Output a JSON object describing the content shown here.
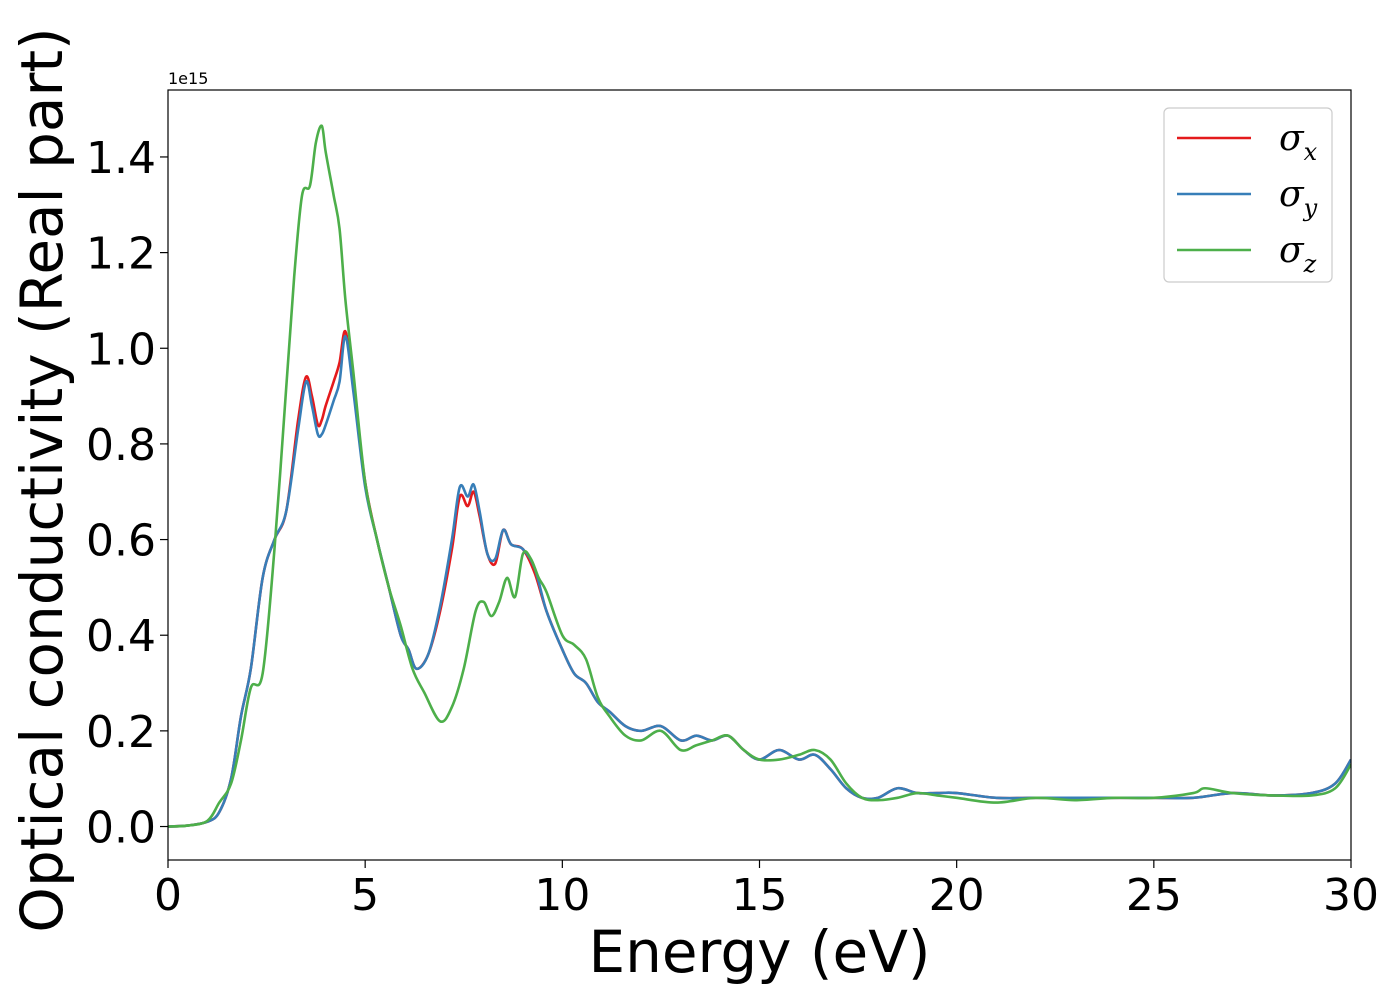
{
  "chart_data": {
    "type": "line",
    "xlabel": "Energy (eV)",
    "ylabel": "Optical conductivity (Real part)",
    "y_offset_text": "1e15",
    "xlim": [
      0,
      30
    ],
    "ylim": [
      -0.07,
      1.54
    ],
    "x_ticks": [
      0,
      5,
      10,
      15,
      20,
      25,
      30
    ],
    "x_tick_labels": [
      "0",
      "5",
      "10",
      "15",
      "20",
      "25",
      "30"
    ],
    "y_ticks": [
      0.0,
      0.2,
      0.4,
      0.6,
      0.8,
      1.0,
      1.2,
      1.4
    ],
    "y_tick_labels": [
      "0.0",
      "0.2",
      "0.4",
      "0.6",
      "0.8",
      "1.0",
      "1.2",
      "1.4"
    ],
    "legend_position": "top-right",
    "grid": false,
    "series": [
      {
        "name": "σ_x",
        "label_base": "σ",
        "label_sub": "x",
        "color": "#e41a1c",
        "x": [
          0,
          0.5,
          1.0,
          1.3,
          1.6,
          1.85,
          2.1,
          2.4,
          2.7,
          3.0,
          3.3,
          3.5,
          3.65,
          3.8,
          3.9,
          4.0,
          4.2,
          4.35,
          4.5,
          4.7,
          5.0,
          5.3,
          5.6,
          5.9,
          6.1,
          6.3,
          6.6,
          6.9,
          7.2,
          7.4,
          7.6,
          7.75,
          7.9,
          8.1,
          8.3,
          8.5,
          8.7,
          9.0,
          9.3,
          9.6,
          10.0,
          10.3,
          10.6,
          10.9,
          11.2,
          11.6,
          12.0,
          12.5,
          13.0,
          13.4,
          13.8,
          14.2,
          14.6,
          15.0,
          15.5,
          16.0,
          16.4,
          16.8,
          17.2,
          17.6,
          18.0,
          18.5,
          19.0,
          19.5,
          20.0,
          21.0,
          22.0,
          23.0,
          24.0,
          25.0,
          26.0,
          27.0,
          28.0,
          29.0,
          29.6,
          30.0
        ],
        "y": [
          0.0,
          0.002,
          0.01,
          0.03,
          0.1,
          0.23,
          0.33,
          0.52,
          0.6,
          0.66,
          0.85,
          0.94,
          0.9,
          0.84,
          0.85,
          0.88,
          0.93,
          0.97,
          1.035,
          0.92,
          0.72,
          0.6,
          0.5,
          0.4,
          0.37,
          0.33,
          0.36,
          0.45,
          0.58,
          0.69,
          0.67,
          0.7,
          0.65,
          0.57,
          0.55,
          0.62,
          0.59,
          0.58,
          0.53,
          0.45,
          0.37,
          0.32,
          0.3,
          0.26,
          0.24,
          0.21,
          0.2,
          0.21,
          0.18,
          0.19,
          0.18,
          0.19,
          0.16,
          0.14,
          0.16,
          0.14,
          0.15,
          0.12,
          0.08,
          0.06,
          0.06,
          0.08,
          0.07,
          0.07,
          0.07,
          0.06,
          0.06,
          0.06,
          0.06,
          0.06,
          0.06,
          0.07,
          0.065,
          0.07,
          0.09,
          0.14
        ]
      },
      {
        "name": "σ_y",
        "label_base": "σ",
        "label_sub": "y",
        "color": "#377eb8",
        "x": [
          0,
          0.5,
          1.0,
          1.3,
          1.6,
          1.85,
          2.1,
          2.4,
          2.7,
          3.0,
          3.3,
          3.5,
          3.65,
          3.8,
          3.9,
          4.0,
          4.2,
          4.35,
          4.5,
          4.7,
          5.0,
          5.3,
          5.6,
          5.9,
          6.1,
          6.3,
          6.6,
          6.9,
          7.2,
          7.4,
          7.6,
          7.75,
          7.9,
          8.1,
          8.3,
          8.5,
          8.7,
          9.0,
          9.3,
          9.6,
          10.0,
          10.3,
          10.6,
          10.9,
          11.2,
          11.6,
          12.0,
          12.5,
          13.0,
          13.4,
          13.8,
          14.2,
          14.6,
          15.0,
          15.5,
          16.0,
          16.4,
          16.8,
          17.2,
          17.6,
          18.0,
          18.5,
          19.0,
          19.5,
          20.0,
          21.0,
          22.0,
          23.0,
          24.0,
          25.0,
          26.0,
          27.0,
          28.0,
          29.0,
          29.6,
          30.0
        ],
        "y": [
          0.0,
          0.002,
          0.01,
          0.03,
          0.1,
          0.23,
          0.33,
          0.52,
          0.6,
          0.66,
          0.83,
          0.93,
          0.88,
          0.82,
          0.82,
          0.84,
          0.89,
          0.93,
          1.025,
          0.91,
          0.71,
          0.6,
          0.5,
          0.4,
          0.37,
          0.33,
          0.36,
          0.46,
          0.6,
          0.71,
          0.69,
          0.715,
          0.66,
          0.57,
          0.56,
          0.62,
          0.59,
          0.58,
          0.54,
          0.45,
          0.37,
          0.32,
          0.3,
          0.26,
          0.24,
          0.21,
          0.2,
          0.21,
          0.18,
          0.19,
          0.18,
          0.19,
          0.16,
          0.14,
          0.16,
          0.14,
          0.15,
          0.12,
          0.08,
          0.06,
          0.06,
          0.08,
          0.07,
          0.07,
          0.07,
          0.06,
          0.06,
          0.06,
          0.06,
          0.06,
          0.06,
          0.07,
          0.065,
          0.07,
          0.09,
          0.14
        ]
      },
      {
        "name": "σ_z",
        "label_base": "σ",
        "label_sub": "z",
        "color": "#4daf4a",
        "x": [
          0,
          0.5,
          1.0,
          1.3,
          1.6,
          1.85,
          2.1,
          2.4,
          2.7,
          3.0,
          3.2,
          3.4,
          3.6,
          3.75,
          3.9,
          4.0,
          4.2,
          4.35,
          4.5,
          4.7,
          5.0,
          5.3,
          5.6,
          5.9,
          6.2,
          6.5,
          6.9,
          7.2,
          7.5,
          7.8,
          8.0,
          8.2,
          8.4,
          8.6,
          8.8,
          9.0,
          9.2,
          9.4,
          9.6,
          10.0,
          10.3,
          10.6,
          10.9,
          11.2,
          11.6,
          12.0,
          12.5,
          13.0,
          13.4,
          13.8,
          14.2,
          14.6,
          15.0,
          15.5,
          16.0,
          16.4,
          16.8,
          17.2,
          17.6,
          18.0,
          18.5,
          19.0,
          19.5,
          20.0,
          21.0,
          22.0,
          23.0,
          24.0,
          25.0,
          26.0,
          26.3,
          27.0,
          28.0,
          29.0,
          29.6,
          30.0
        ],
        "y": [
          0.0,
          0.002,
          0.012,
          0.05,
          0.09,
          0.18,
          0.29,
          0.32,
          0.58,
          0.92,
          1.15,
          1.32,
          1.34,
          1.43,
          1.465,
          1.41,
          1.32,
          1.25,
          1.1,
          0.95,
          0.72,
          0.6,
          0.5,
          0.42,
          0.33,
          0.28,
          0.22,
          0.25,
          0.33,
          0.45,
          0.47,
          0.44,
          0.47,
          0.52,
          0.48,
          0.57,
          0.56,
          0.52,
          0.49,
          0.4,
          0.38,
          0.35,
          0.27,
          0.23,
          0.19,
          0.18,
          0.2,
          0.16,
          0.17,
          0.18,
          0.19,
          0.16,
          0.14,
          0.14,
          0.15,
          0.16,
          0.14,
          0.09,
          0.06,
          0.055,
          0.06,
          0.07,
          0.065,
          0.06,
          0.05,
          0.06,
          0.055,
          0.06,
          0.06,
          0.07,
          0.08,
          0.07,
          0.065,
          0.065,
          0.08,
          0.13
        ]
      }
    ]
  }
}
